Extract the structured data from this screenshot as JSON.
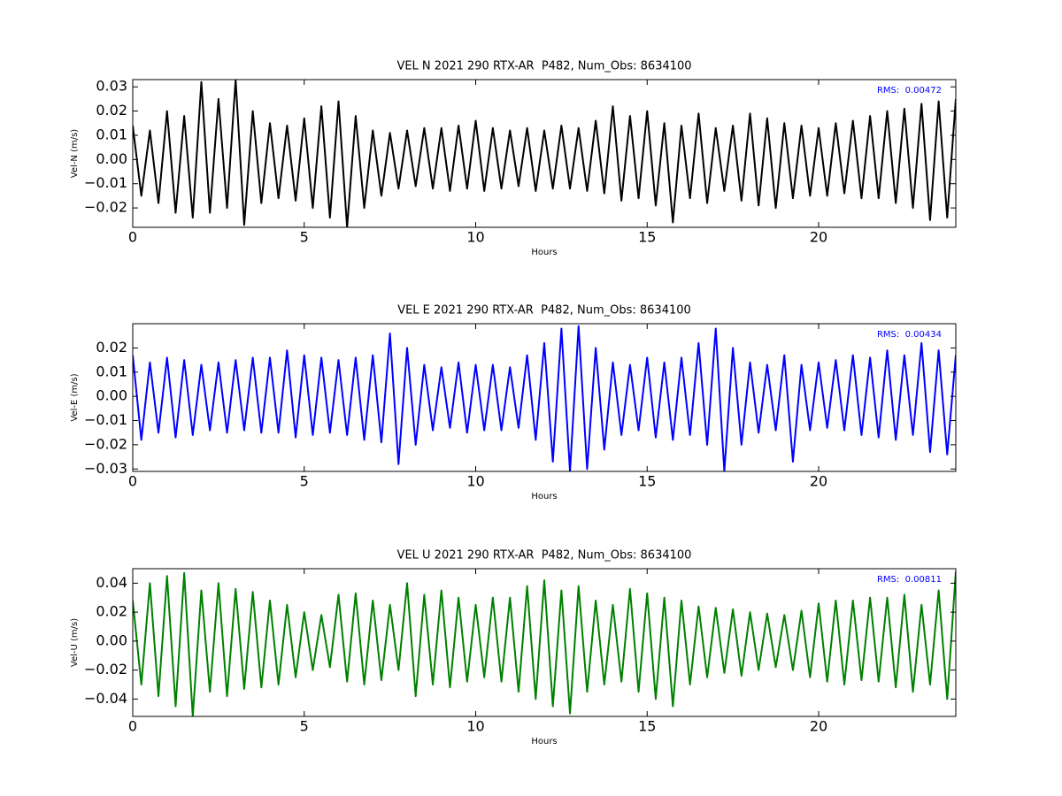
{
  "chart_data": [
    {
      "type": "line",
      "title": "VEL N 2021 290 RTX-AR  P482, Num_Obs: 8634100",
      "xlabel": "Hours",
      "ylabel": "Vel-N (m/s)",
      "annotation": "RMS:  0.00472",
      "annotation_color": "#0000ff",
      "color": "#000000",
      "x": [
        0,
        0.25,
        0.5,
        0.75,
        1,
        1.25,
        1.5,
        1.75,
        2,
        2.25,
        2.5,
        2.75,
        3,
        3.25,
        3.5,
        3.75,
        4,
        4.25,
        4.5,
        4.75,
        5,
        5.25,
        5.5,
        5.75,
        6,
        6.25,
        6.5,
        6.75,
        7,
        7.25,
        7.5,
        7.75,
        8,
        8.25,
        8.5,
        8.75,
        9,
        9.25,
        9.5,
        9.75,
        10,
        10.25,
        10.5,
        10.75,
        11,
        11.25,
        11.5,
        11.75,
        12,
        12.25,
        12.5,
        12.75,
        13,
        13.25,
        13.5,
        13.75,
        14,
        14.25,
        14.5,
        14.75,
        15,
        15.25,
        15.5,
        15.75,
        16,
        16.25,
        16.5,
        16.75,
        17,
        17.25,
        17.5,
        17.75,
        18,
        18.25,
        18.5,
        18.75,
        19,
        19.25,
        19.5,
        19.75,
        20,
        20.25,
        20.5,
        20.75,
        21,
        21.25,
        21.5,
        21.75,
        22,
        22.25,
        22.5,
        22.75,
        23,
        23.25,
        23.5,
        23.75,
        24
      ],
      "values": [
        0.014,
        -0.015,
        0.012,
        -0.018,
        0.02,
        -0.022,
        0.018,
        -0.024,
        0.032,
        -0.022,
        0.025,
        -0.02,
        0.033,
        -0.027,
        0.02,
        -0.018,
        0.015,
        -0.016,
        0.014,
        -0.017,
        0.017,
        -0.02,
        0.022,
        -0.024,
        0.024,
        -0.028,
        0.018,
        -0.02,
        0.012,
        -0.015,
        0.011,
        -0.012,
        0.012,
        -0.011,
        0.013,
        -0.012,
        0.013,
        -0.013,
        0.014,
        -0.012,
        0.016,
        -0.013,
        0.013,
        -0.012,
        0.012,
        -0.011,
        0.013,
        -0.013,
        0.012,
        -0.012,
        0.014,
        -0.012,
        0.013,
        -0.013,
        0.016,
        -0.014,
        0.022,
        -0.017,
        0.018,
        -0.016,
        0.02,
        -0.019,
        0.015,
        -0.026,
        0.014,
        -0.016,
        0.019,
        -0.018,
        0.013,
        -0.013,
        0.014,
        -0.017,
        0.019,
        -0.019,
        0.017,
        -0.02,
        0.015,
        -0.016,
        0.014,
        -0.015,
        0.013,
        -0.015,
        0.015,
        -0.014,
        0.016,
        -0.016,
        0.018,
        -0.016,
        0.02,
        -0.018,
        0.021,
        -0.02,
        0.023,
        -0.025,
        0.024,
        -0.024,
        0.025
      ],
      "xlim": [
        0,
        24
      ],
      "xticks": [
        0,
        5,
        10,
        15,
        20
      ],
      "ylim": [
        -0.028,
        0.033
      ],
      "yticks": [
        {
          "value": -0.02,
          "label": "−0.02"
        },
        {
          "value": -0.01,
          "label": "−0.01"
        },
        {
          "value": 0,
          "label": "0.00"
        },
        {
          "value": 0.01,
          "label": "0.01"
        },
        {
          "value": 0.02,
          "label": "0.02"
        },
        {
          "value": 0.03,
          "label": "0.03"
        }
      ]
    },
    {
      "type": "line",
      "title": "VEL E 2021 290 RTX-AR  P482, Num_Obs: 8634100",
      "xlabel": "Hours",
      "ylabel": "Vel-E (m/s)",
      "annotation": "RMS:  0.00434",
      "annotation_color": "#0000ff",
      "color": "#0000ff",
      "x": [
        0,
        0.25,
        0.5,
        0.75,
        1,
        1.25,
        1.5,
        1.75,
        2,
        2.25,
        2.5,
        2.75,
        3,
        3.25,
        3.5,
        3.75,
        4,
        4.25,
        4.5,
        4.75,
        5,
        5.25,
        5.5,
        5.75,
        6,
        6.25,
        6.5,
        6.75,
        7,
        7.25,
        7.5,
        7.75,
        8,
        8.25,
        8.5,
        8.75,
        9,
        9.25,
        9.5,
        9.75,
        10,
        10.25,
        10.5,
        10.75,
        11,
        11.25,
        11.5,
        11.75,
        12,
        12.25,
        12.5,
        12.75,
        13,
        13.25,
        13.5,
        13.75,
        14,
        14.25,
        14.5,
        14.75,
        15,
        15.25,
        15.5,
        15.75,
        16,
        16.25,
        16.5,
        16.75,
        17,
        17.25,
        17.5,
        17.75,
        18,
        18.25,
        18.5,
        18.75,
        19,
        19.25,
        19.5,
        19.75,
        20,
        20.25,
        20.5,
        20.75,
        21,
        21.25,
        21.5,
        21.75,
        22,
        22.25,
        22.5,
        22.75,
        23,
        23.25,
        23.5,
        23.75,
        24
      ],
      "values": [
        0.017,
        -0.018,
        0.014,
        -0.015,
        0.016,
        -0.017,
        0.015,
        -0.016,
        0.013,
        -0.014,
        0.014,
        -0.015,
        0.015,
        -0.014,
        0.016,
        -0.015,
        0.016,
        -0.015,
        0.019,
        -0.017,
        0.017,
        -0.016,
        0.016,
        -0.015,
        0.015,
        -0.016,
        0.016,
        -0.018,
        0.017,
        -0.019,
        0.026,
        -0.028,
        0.02,
        -0.02,
        0.013,
        -0.014,
        0.012,
        -0.013,
        0.014,
        -0.015,
        0.013,
        -0.014,
        0.013,
        -0.014,
        0.012,
        -0.013,
        0.017,
        -0.018,
        0.022,
        -0.027,
        0.028,
        -0.031,
        0.029,
        -0.03,
        0.02,
        -0.022,
        0.014,
        -0.016,
        0.013,
        -0.014,
        0.016,
        -0.017,
        0.014,
        -0.018,
        0.016,
        -0.016,
        0.022,
        -0.02,
        0.028,
        -0.031,
        0.02,
        -0.02,
        0.014,
        -0.015,
        0.013,
        -0.014,
        0.017,
        -0.027,
        0.013,
        -0.014,
        0.014,
        -0.013,
        0.015,
        -0.014,
        0.017,
        -0.016,
        0.016,
        -0.017,
        0.019,
        -0.018,
        0.017,
        -0.016,
        0.022,
        -0.023,
        0.019,
        -0.024,
        0.017
      ],
      "xlim": [
        0,
        24
      ],
      "xticks": [
        0,
        5,
        10,
        15,
        20
      ],
      "ylim": [
        -0.031,
        0.03
      ],
      "yticks": [
        {
          "value": -0.03,
          "label": "−0.03"
        },
        {
          "value": -0.02,
          "label": "−0.02"
        },
        {
          "value": -0.01,
          "label": "−0.01"
        },
        {
          "value": 0,
          "label": "0.00"
        },
        {
          "value": 0.01,
          "label": "0.01"
        },
        {
          "value": 0.02,
          "label": "0.02"
        }
      ]
    },
    {
      "type": "line",
      "title": "VEL U 2021 290 RTX-AR  P482, Num_Obs: 8634100",
      "xlabel": "Hours",
      "ylabel": "Vel-U (m/s)",
      "annotation": "RMS:  0.00811",
      "annotation_color": "#0000ff",
      "color": "#008000",
      "x": [
        0,
        0.25,
        0.5,
        0.75,
        1,
        1.25,
        1.5,
        1.75,
        2,
        2.25,
        2.5,
        2.75,
        3,
        3.25,
        3.5,
        3.75,
        4,
        4.25,
        4.5,
        4.75,
        5,
        5.25,
        5.5,
        5.75,
        6,
        6.25,
        6.5,
        6.75,
        7,
        7.25,
        7.5,
        7.75,
        8,
        8.25,
        8.5,
        8.75,
        9,
        9.25,
        9.5,
        9.75,
        10,
        10.25,
        10.5,
        10.75,
        11,
        11.25,
        11.5,
        11.75,
        12,
        12.25,
        12.5,
        12.75,
        13,
        13.25,
        13.5,
        13.75,
        14,
        14.25,
        14.5,
        14.75,
        15,
        15.25,
        15.5,
        15.75,
        16,
        16.25,
        16.5,
        16.75,
        17,
        17.25,
        17.5,
        17.75,
        18,
        18.25,
        18.5,
        18.75,
        19,
        19.25,
        19.5,
        19.75,
        20,
        20.25,
        20.5,
        20.75,
        21,
        21.25,
        21.5,
        21.75,
        22,
        22.25,
        22.5,
        22.75,
        23,
        23.25,
        23.5,
        23.75,
        24
      ],
      "values": [
        0.028,
        -0.03,
        0.04,
        -0.038,
        0.045,
        -0.045,
        0.047,
        -0.052,
        0.035,
        -0.035,
        0.04,
        -0.038,
        0.036,
        -0.033,
        0.034,
        -0.032,
        0.028,
        -0.03,
        0.025,
        -0.025,
        0.02,
        -0.02,
        0.018,
        -0.018,
        0.032,
        -0.028,
        0.033,
        -0.03,
        0.028,
        -0.027,
        0.025,
        -0.02,
        0.04,
        -0.038,
        0.032,
        -0.03,
        0.035,
        -0.032,
        0.03,
        -0.028,
        0.025,
        -0.025,
        0.03,
        -0.028,
        0.03,
        -0.035,
        0.038,
        -0.04,
        0.042,
        -0.045,
        0.035,
        -0.05,
        0.038,
        -0.035,
        0.028,
        -0.03,
        0.025,
        -0.028,
        0.036,
        -0.035,
        0.033,
        -0.04,
        0.03,
        -0.045,
        0.028,
        -0.03,
        0.024,
        -0.025,
        0.023,
        -0.022,
        0.022,
        -0.024,
        0.02,
        -0.02,
        0.019,
        -0.018,
        0.018,
        -0.02,
        0.021,
        -0.025,
        0.026,
        -0.028,
        0.028,
        -0.03,
        0.028,
        -0.027,
        0.03,
        -0.028,
        0.03,
        -0.032,
        0.032,
        -0.035,
        0.025,
        -0.03,
        0.035,
        -0.04,
        0.048
      ],
      "xlim": [
        0,
        24
      ],
      "xticks": [
        0,
        5,
        10,
        15,
        20
      ],
      "ylim": [
        -0.052,
        0.05
      ],
      "yticks": [
        {
          "value": -0.04,
          "label": "−0.04"
        },
        {
          "value": -0.02,
          "label": "−0.02"
        },
        {
          "value": 0,
          "label": "0.00"
        },
        {
          "value": 0.02,
          "label": "0.02"
        },
        {
          "value": 0.04,
          "label": "0.04"
        }
      ]
    }
  ]
}
